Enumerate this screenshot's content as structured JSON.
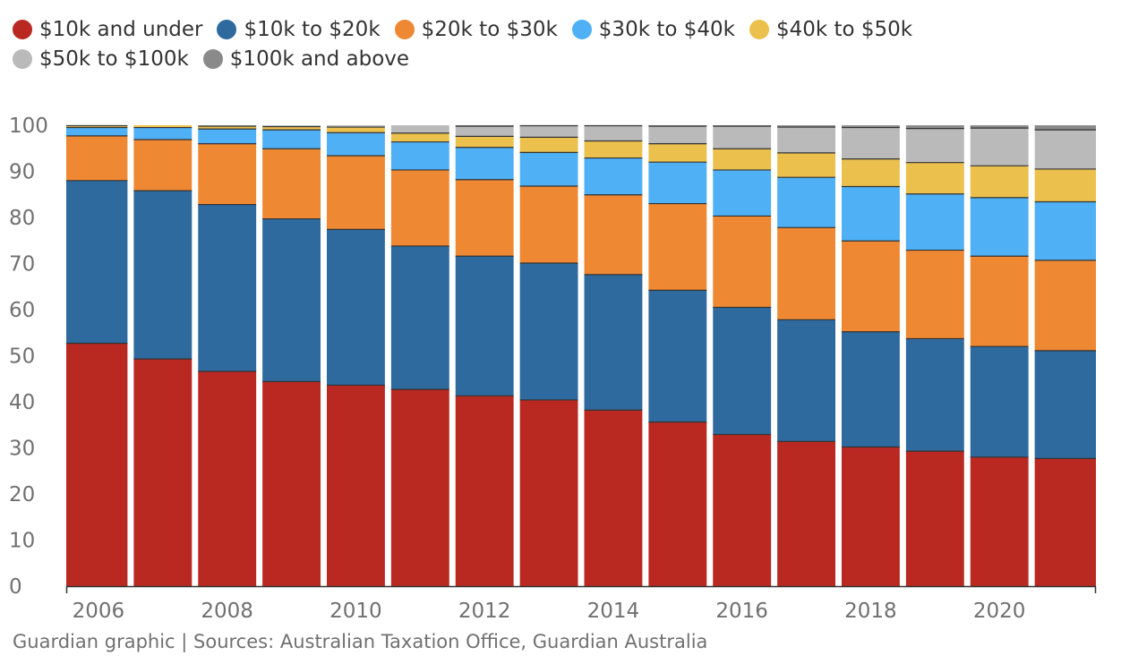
{
  "source_note": "Guardian graphic | Sources: Australian Taxation Office, Guardian Australia",
  "chart_data": {
    "type": "bar",
    "stacked": true,
    "categories": [
      "2006",
      "2007",
      "2008",
      "2009",
      "2010",
      "2011",
      "2012",
      "2013",
      "2014",
      "2015",
      "2016",
      "2017",
      "2018",
      "2019",
      "2020",
      "2021"
    ],
    "x_tick_labels": [
      "2006",
      "2008",
      "2010",
      "2012",
      "2014",
      "2016",
      "2018",
      "2020"
    ],
    "y_ticks": [
      0,
      10,
      20,
      30,
      40,
      50,
      60,
      70,
      80,
      90,
      100
    ],
    "ylim": [
      0,
      100
    ],
    "grid": false,
    "legend_placement": "top",
    "series": [
      {
        "name": "$10k and under",
        "color": "#b92922",
        "values": [
          52.7,
          49.3,
          46.6,
          44.4,
          43.6,
          42.7,
          41.3,
          40.4,
          38.2,
          35.6,
          32.9,
          31.4,
          30.2,
          29.3,
          28.0,
          27.7
        ]
      },
      {
        "name": "$10k to $20k",
        "color": "#2e6a9e",
        "values": [
          35.3,
          36.5,
          36.2,
          35.3,
          33.8,
          31.1,
          30.3,
          29.7,
          29.4,
          28.6,
          27.6,
          26.4,
          25.0,
          24.4,
          24.0,
          23.4
        ]
      },
      {
        "name": "$20k to $30k",
        "color": "#ef8833",
        "values": [
          9.7,
          11.1,
          13.2,
          15.2,
          16.0,
          16.5,
          16.6,
          16.7,
          17.3,
          18.8,
          19.8,
          20.0,
          19.7,
          19.2,
          19.6,
          19.6
        ]
      },
      {
        "name": "$30k to $40k",
        "color": "#4fb0f5",
        "values": [
          1.8,
          2.6,
          3.2,
          4.1,
          5.0,
          6.1,
          7.0,
          7.3,
          8.0,
          9.0,
          10.0,
          10.9,
          11.8,
          12.2,
          12.7,
          12.7
        ]
      },
      {
        "name": "$40k to $50k",
        "color": "#ebc04c",
        "values": [
          0.4,
          0.5,
          0.6,
          0.7,
          1.2,
          1.9,
          2.4,
          3.3,
          3.7,
          4.0,
          4.6,
          5.3,
          6.0,
          6.8,
          6.9,
          7.1
        ]
      },
      {
        "name": "$50k to $100k",
        "color": "#bababa",
        "values": [
          0.1,
          0.0,
          0.2,
          0.3,
          0.4,
          1.7,
          2.2,
          2.5,
          3.3,
          3.8,
          4.9,
          5.6,
          6.8,
          7.4,
          8.2,
          8.5
        ]
      },
      {
        "name": "$100k and above",
        "color": "#8a8a8a",
        "values": [
          0.0,
          0.0,
          0.0,
          0.0,
          0.0,
          0.0,
          0.2,
          0.1,
          0.1,
          0.2,
          0.2,
          0.4,
          0.5,
          0.7,
          0.6,
          1.0
        ]
      }
    ]
  }
}
